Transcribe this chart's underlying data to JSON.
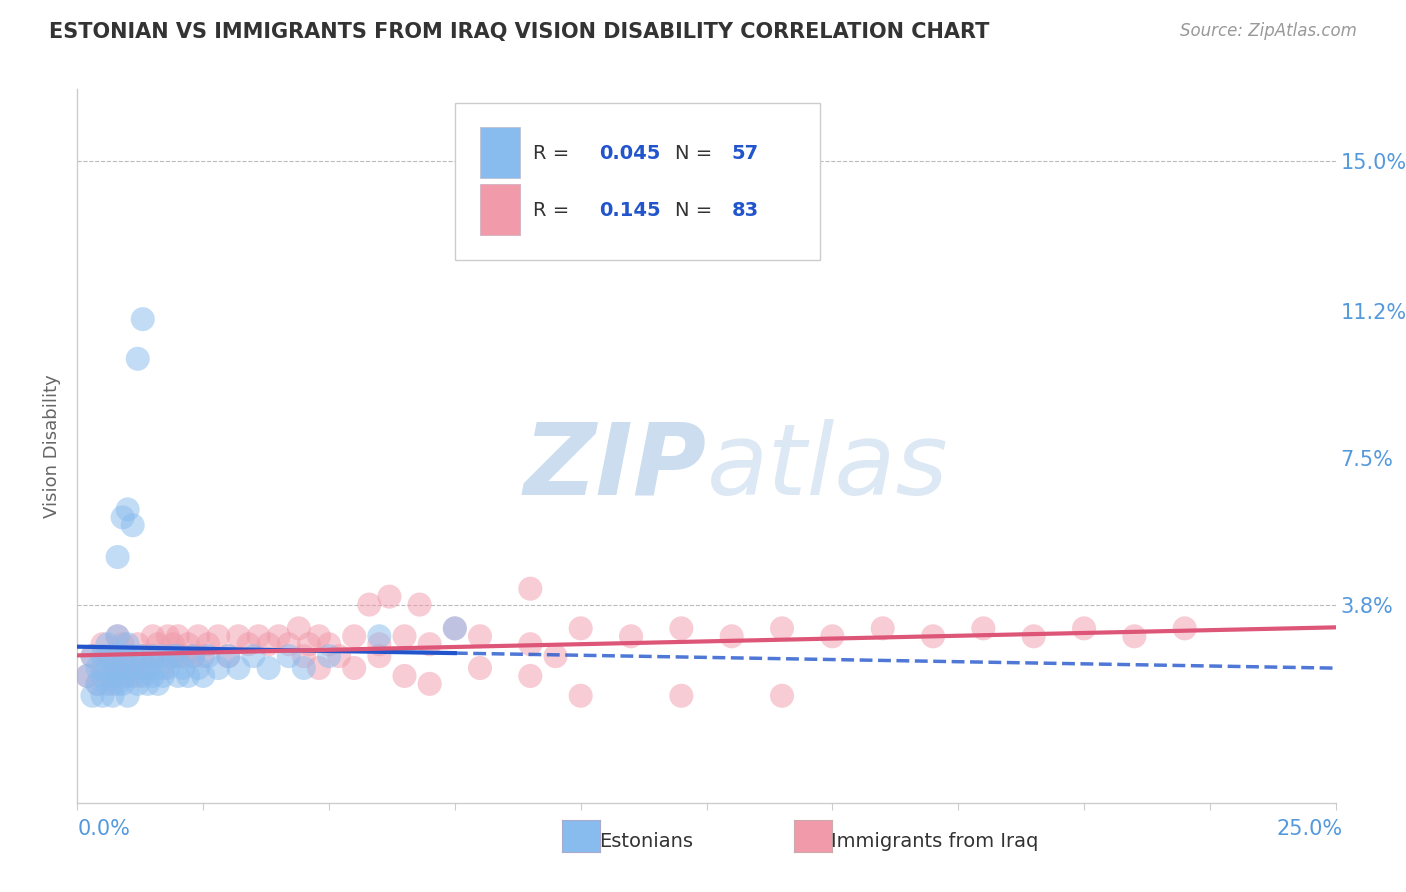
{
  "title": "ESTONIAN VS IMMIGRANTS FROM IRAQ VISION DISABILITY CORRELATION CHART",
  "source": "Source: ZipAtlas.com",
  "ylabel": "Vision Disability",
  "ytick_labels": [
    "3.8%",
    "7.5%",
    "11.2%",
    "15.0%"
  ],
  "ytick_values": [
    0.038,
    0.075,
    0.112,
    0.15
  ],
  "xlim": [
    0.0,
    0.25
  ],
  "ylim": [
    -0.012,
    0.168
  ],
  "color_estonian": "#88bbee",
  "color_iraq": "#f09aaa",
  "color_estonian_line": "#2255cc",
  "color_iraq_line": "#dd5577",
  "title_color": "#333333",
  "axis_label_color": "#5599dd",
  "watermark_text_color": "#ddeeff",
  "legend_text_color": "#2255cc",
  "legend_r_color": "#111111",
  "estonian_x": [
    0.002,
    0.003,
    0.003,
    0.004,
    0.004,
    0.005,
    0.005,
    0.005,
    0.006,
    0.006,
    0.006,
    0.007,
    0.007,
    0.007,
    0.008,
    0.008,
    0.008,
    0.009,
    0.009,
    0.009,
    0.01,
    0.01,
    0.01,
    0.011,
    0.011,
    0.012,
    0.012,
    0.013,
    0.013,
    0.014,
    0.014,
    0.015,
    0.015,
    0.016,
    0.016,
    0.017,
    0.017,
    0.018,
    0.019,
    0.02,
    0.02,
    0.021,
    0.022,
    0.023,
    0.024,
    0.025,
    0.026,
    0.028,
    0.03,
    0.032,
    0.035,
    0.038,
    0.042,
    0.045,
    0.05,
    0.06,
    0.075
  ],
  "estonian_y": [
    0.02,
    0.015,
    0.025,
    0.018,
    0.022,
    0.02,
    0.025,
    0.015,
    0.018,
    0.022,
    0.028,
    0.02,
    0.025,
    0.015,
    0.022,
    0.018,
    0.03,
    0.02,
    0.025,
    0.018,
    0.022,
    0.028,
    0.015,
    0.02,
    0.025,
    0.018,
    0.022,
    0.02,
    0.025,
    0.018,
    0.022,
    0.02,
    0.025,
    0.018,
    0.022,
    0.02,
    0.025,
    0.022,
    0.025,
    0.02,
    0.025,
    0.022,
    0.02,
    0.025,
    0.022,
    0.02,
    0.025,
    0.022,
    0.025,
    0.022,
    0.025,
    0.022,
    0.025,
    0.022,
    0.025,
    0.03,
    0.032
  ],
  "estonian_outlier_x": [
    0.008,
    0.009,
    0.01,
    0.011,
    0.012,
    0.013
  ],
  "estonian_outlier_y": [
    0.05,
    0.06,
    0.062,
    0.058,
    0.1,
    0.11
  ],
  "iraq_x": [
    0.002,
    0.003,
    0.004,
    0.005,
    0.005,
    0.006,
    0.006,
    0.007,
    0.007,
    0.008,
    0.008,
    0.009,
    0.009,
    0.01,
    0.01,
    0.011,
    0.012,
    0.012,
    0.013,
    0.014,
    0.015,
    0.015,
    0.016,
    0.017,
    0.018,
    0.018,
    0.019,
    0.02,
    0.02,
    0.021,
    0.022,
    0.023,
    0.024,
    0.025,
    0.026,
    0.028,
    0.03,
    0.032,
    0.034,
    0.036,
    0.038,
    0.04,
    0.042,
    0.044,
    0.046,
    0.048,
    0.05,
    0.055,
    0.06,
    0.065,
    0.07,
    0.075,
    0.08,
    0.09,
    0.1,
    0.11,
    0.12,
    0.13,
    0.14,
    0.15,
    0.16,
    0.17,
    0.18,
    0.19,
    0.2,
    0.21,
    0.22,
    0.1,
    0.12,
    0.14,
    0.055,
    0.06,
    0.065,
    0.07,
    0.08,
    0.09,
    0.095,
    0.045,
    0.048,
    0.052,
    0.058,
    0.062,
    0.068
  ],
  "iraq_y": [
    0.02,
    0.025,
    0.018,
    0.022,
    0.028,
    0.02,
    0.025,
    0.018,
    0.025,
    0.02,
    0.03,
    0.022,
    0.028,
    0.02,
    0.025,
    0.022,
    0.028,
    0.02,
    0.025,
    0.022,
    0.03,
    0.025,
    0.028,
    0.022,
    0.03,
    0.025,
    0.028,
    0.025,
    0.03,
    0.025,
    0.028,
    0.025,
    0.03,
    0.025,
    0.028,
    0.03,
    0.025,
    0.03,
    0.028,
    0.03,
    0.028,
    0.03,
    0.028,
    0.032,
    0.028,
    0.03,
    0.028,
    0.03,
    0.028,
    0.03,
    0.028,
    0.032,
    0.03,
    0.028,
    0.032,
    0.03,
    0.032,
    0.03,
    0.032,
    0.03,
    0.032,
    0.03,
    0.032,
    0.03,
    0.032,
    0.03,
    0.032,
    0.015,
    0.015,
    0.015,
    0.022,
    0.025,
    0.02,
    0.018,
    0.022,
    0.02,
    0.025,
    0.025,
    0.022,
    0.025,
    0.038,
    0.04,
    0.038
  ],
  "iraq_outlier_x": [
    0.09
  ],
  "iraq_outlier_y": [
    0.042
  ]
}
